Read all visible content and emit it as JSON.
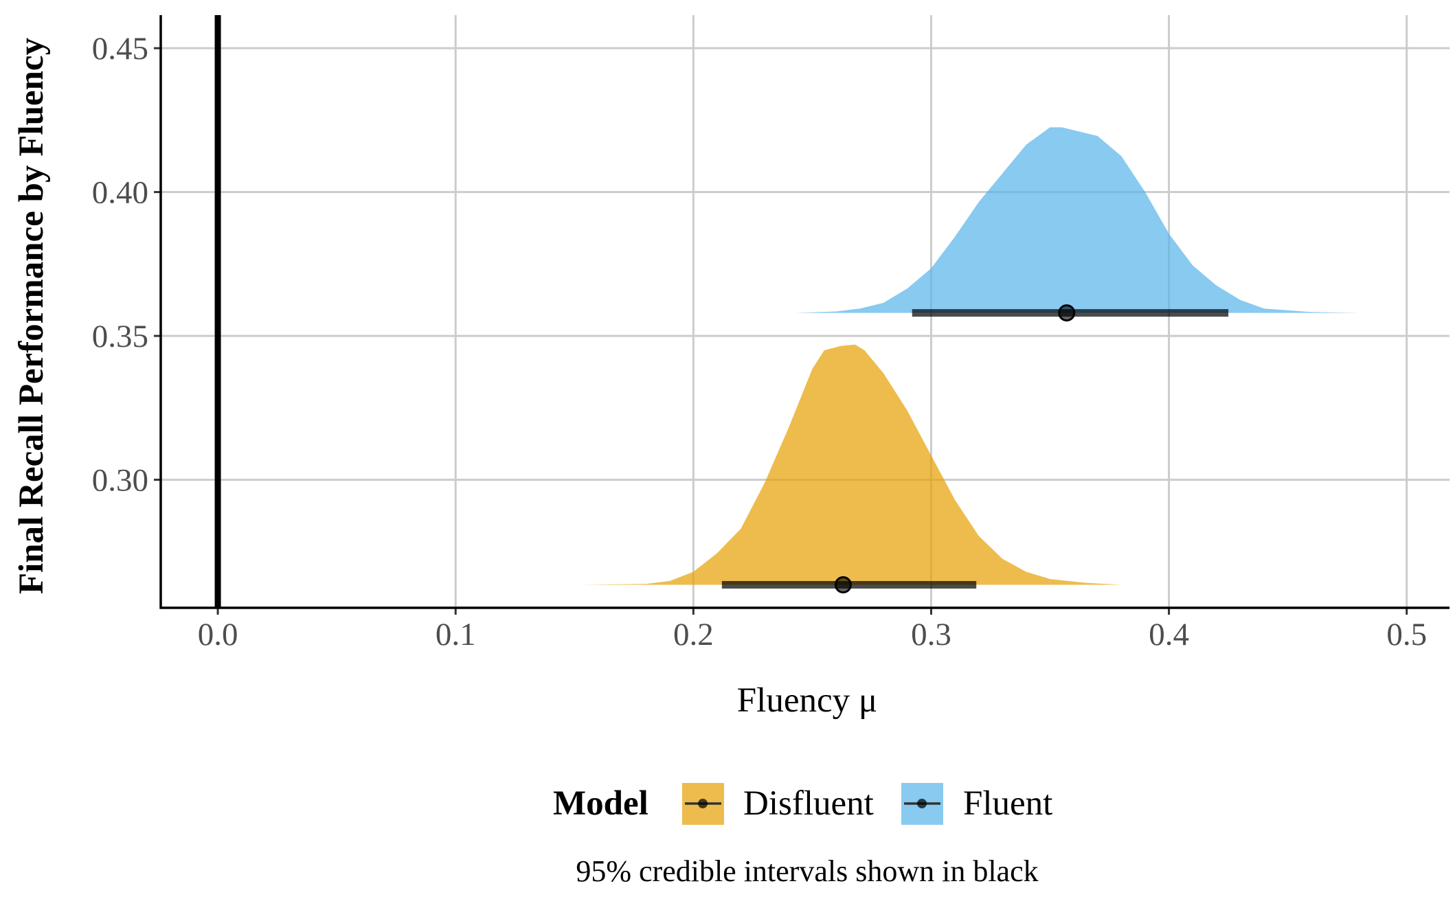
{
  "chart_data": {
    "type": "area",
    "xlabel": "Fluency μ",
    "ylabel": "Final Recall Performance by Fluency",
    "xlim": [
      -0.024,
      0.518
    ],
    "ylim": [
      0.2555,
      0.4615
    ],
    "x_ticks": [
      "0.0",
      "0.1",
      "0.2",
      "0.3",
      "0.4",
      "0.5"
    ],
    "y_ticks": [
      "0.30",
      "0.35",
      "0.40",
      "0.45"
    ],
    "grid": true,
    "reference_line_x": 0,
    "legend": {
      "title": "Model",
      "placement": "bottom",
      "entries": [
        {
          "label": "Disfluent",
          "color": "#E69F00"
        },
        {
          "label": "Fluent",
          "color": "#56B4E9"
        }
      ]
    },
    "caption": "95% credible intervals shown in black",
    "series": [
      {
        "name": "Disfluent",
        "color": "#E69F00",
        "baseline": 0.2635,
        "point": 0.263,
        "interval": [
          0.212,
          0.319
        ],
        "density": [
          [
            0.153,
            0.2635
          ],
          [
            0.18,
            0.2638
          ],
          [
            0.19,
            0.2648
          ],
          [
            0.2,
            0.268
          ],
          [
            0.21,
            0.2745
          ],
          [
            0.22,
            0.283
          ],
          [
            0.23,
            0.299
          ],
          [
            0.24,
            0.318
          ],
          [
            0.25,
            0.3385
          ],
          [
            0.255,
            0.345
          ],
          [
            0.262,
            0.3465
          ],
          [
            0.268,
            0.347
          ],
          [
            0.272,
            0.345
          ],
          [
            0.28,
            0.337
          ],
          [
            0.29,
            0.324
          ],
          [
            0.3,
            0.3085
          ],
          [
            0.31,
            0.293
          ],
          [
            0.32,
            0.2805
          ],
          [
            0.33,
            0.2725
          ],
          [
            0.34,
            0.268
          ],
          [
            0.35,
            0.2655
          ],
          [
            0.365,
            0.2642
          ],
          [
            0.38,
            0.2635
          ]
        ]
      },
      {
        "name": "Fluent",
        "color": "#56B4E9",
        "baseline": 0.358,
        "point": 0.357,
        "interval": [
          0.292,
          0.425
        ],
        "density": [
          [
            0.243,
            0.358
          ],
          [
            0.26,
            0.3585
          ],
          [
            0.27,
            0.3595
          ],
          [
            0.28,
            0.3615
          ],
          [
            0.29,
            0.3665
          ],
          [
            0.3,
            0.3735
          ],
          [
            0.31,
            0.3845
          ],
          [
            0.32,
            0.3965
          ],
          [
            0.33,
            0.4065
          ],
          [
            0.34,
            0.4165
          ],
          [
            0.35,
            0.4225
          ],
          [
            0.355,
            0.4225
          ],
          [
            0.37,
            0.4195
          ],
          [
            0.38,
            0.4125
          ],
          [
            0.39,
            0.4
          ],
          [
            0.4,
            0.3855
          ],
          [
            0.41,
            0.3745
          ],
          [
            0.42,
            0.3675
          ],
          [
            0.43,
            0.3625
          ],
          [
            0.44,
            0.3595
          ],
          [
            0.46,
            0.3583
          ],
          [
            0.48,
            0.358
          ],
          [
            0.494,
            0.358
          ]
        ]
      }
    ]
  }
}
